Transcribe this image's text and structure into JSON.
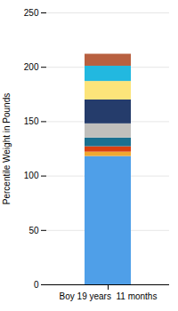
{
  "chart_data": {
    "type": "bar",
    "stacked": true,
    "categories": [
      "Boy 19 years  11 months"
    ],
    "series": [
      {
        "color": "#4f9fe8",
        "values": [
          118
        ]
      },
      {
        "color": "#f0a830",
        "values": [
          4
        ]
      },
      {
        "color": "#d94010",
        "values": [
          5
        ]
      },
      {
        "color": "#1a7090",
        "values": [
          8
        ]
      },
      {
        "color": "#c0bfbc",
        "values": [
          13
        ]
      },
      {
        "color": "#253c6b",
        "values": [
          22
        ]
      },
      {
        "color": "#fce47a",
        "values": [
          17
        ]
      },
      {
        "color": "#22b8e0",
        "values": [
          14
        ]
      },
      {
        "color": "#b86040",
        "values": [
          11
        ]
      }
    ],
    "ylabel": "Percentile Weight in Pounds",
    "ylim": [
      0,
      250
    ],
    "yticks": [
      0,
      50,
      100,
      150,
      200,
      250
    ],
    "grid": true
  }
}
